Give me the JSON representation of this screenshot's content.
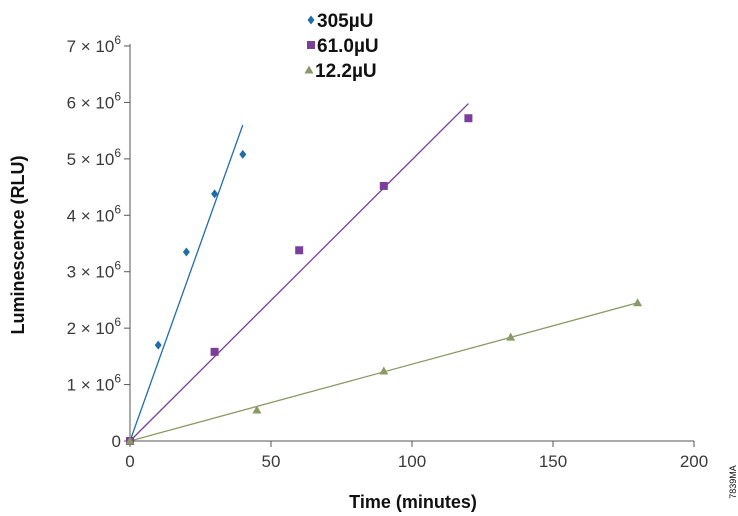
{
  "chart_data": {
    "type": "scatter",
    "title": "",
    "xlabel": "Time (minutes)",
    "ylabel": "Luminescence (RLU)",
    "xlim": [
      0,
      200
    ],
    "ylim": [
      0,
      7000000
    ],
    "x_ticks": [
      {
        "value": 0,
        "label": "0"
      },
      {
        "value": 50,
        "label": "50"
      },
      {
        "value": 100,
        "label": "100"
      },
      {
        "value": 150,
        "label": "150"
      },
      {
        "value": 200,
        "label": "200"
      }
    ],
    "y_ticks": [
      {
        "value": 0,
        "label": "0",
        "base": "0",
        "exp": ""
      },
      {
        "value": 1000000,
        "label": "1 × 10^6",
        "base": "1 × 10",
        "exp": "6"
      },
      {
        "value": 2000000,
        "label": "2 × 10^6",
        "base": "2 × 10",
        "exp": "6"
      },
      {
        "value": 3000000,
        "label": "3 × 10^6",
        "base": "3 × 10",
        "exp": "6"
      },
      {
        "value": 4000000,
        "label": "4 × 10^6",
        "base": "4 × 10",
        "exp": "6"
      },
      {
        "value": 5000000,
        "label": "5 × 10^6",
        "base": "5 × 10",
        "exp": "6"
      },
      {
        "value": 6000000,
        "label": "6 × 10^6",
        "base": "6 × 10",
        "exp": "6"
      },
      {
        "value": 7000000,
        "label": "7 × 10^6",
        "base": "7 × 10",
        "exp": "6"
      }
    ],
    "grid": false,
    "legend_position": "top-center",
    "series": [
      {
        "name": "305µU",
        "marker": "diamond",
        "color": "#1f6ea8",
        "points": [
          [
            0,
            0
          ],
          [
            10,
            1700000
          ],
          [
            20,
            3350000
          ],
          [
            30,
            4380000
          ],
          [
            40,
            5080000
          ]
        ],
        "fit_line": [
          [
            0,
            0
          ],
          [
            40,
            5600000
          ]
        ]
      },
      {
        "name": "61.0µU",
        "marker": "square",
        "color": "#7b3f9b",
        "points": [
          [
            0,
            0
          ],
          [
            30,
            1580000
          ],
          [
            60,
            3380000
          ],
          [
            90,
            4520000
          ],
          [
            120,
            5720000
          ]
        ],
        "fit_line": [
          [
            0,
            0
          ],
          [
            120,
            5980000
          ]
        ]
      },
      {
        "name": "12.2µU",
        "marker": "triangle",
        "color": "#8a9a66",
        "points": [
          [
            0,
            0
          ],
          [
            45,
            550000
          ],
          [
            90,
            1240000
          ],
          [
            135,
            1840000
          ],
          [
            180,
            2450000
          ]
        ],
        "fit_line": [
          [
            0,
            0
          ],
          [
            180,
            2450000
          ]
        ]
      }
    ]
  },
  "figure_code": "7839MA"
}
